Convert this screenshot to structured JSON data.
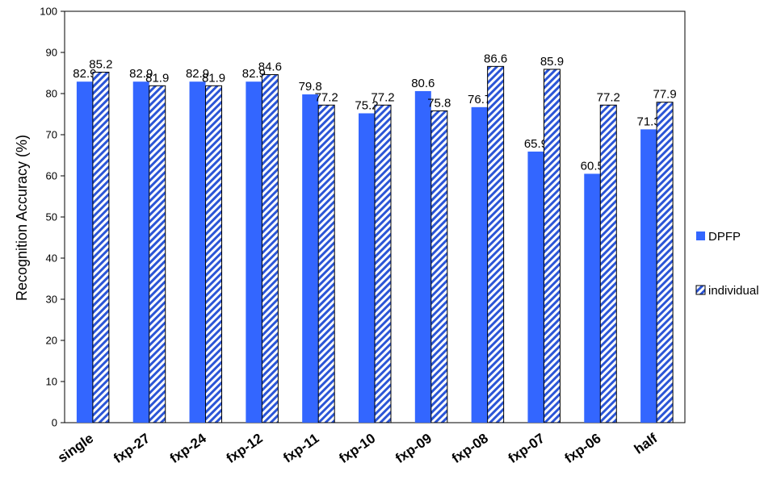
{
  "chart_data": {
    "type": "bar",
    "ylabel": "Recognition Accuracy (%)",
    "xlabel": "",
    "ylim": [
      0,
      100
    ],
    "yticks": [
      0,
      10,
      20,
      30,
      40,
      50,
      60,
      70,
      80,
      90,
      100
    ],
    "grid": false,
    "legend_position": "right",
    "categories": [
      "single",
      "fxp-27",
      "fxp-24",
      "fxp-12",
      "fxp-11",
      "fxp-10",
      "fxp-09",
      "fxp-08",
      "fxp-07",
      "fxp-06",
      "half"
    ],
    "series": [
      {
        "name": "DPFP",
        "color": "#3366ff",
        "pattern": "solid",
        "values": [
          82.9,
          82.9,
          82.9,
          82.9,
          79.8,
          75.2,
          80.6,
          76.7,
          65.9,
          60.5,
          71.3
        ],
        "labels": [
          "82.9",
          "82.9",
          "82.9",
          "82.9",
          "79.8",
          "75.2",
          "80.6",
          "76.7",
          "65.9",
          "60.5",
          "71.3"
        ]
      },
      {
        "name": "individual",
        "color": "#2b55d6",
        "pattern": "diagonal-hatch",
        "values": [
          85.2,
          81.9,
          81.9,
          84.6,
          77.2,
          77.2,
          75.8,
          86.6,
          85.9,
          77.2,
          77.9
        ],
        "labels": [
          "85.2",
          "81.9",
          "81.9",
          "84.6",
          "77.2",
          "77.2",
          "75.8",
          "86.6",
          "85.9",
          "77.2",
          "77.9"
        ]
      }
    ]
  }
}
